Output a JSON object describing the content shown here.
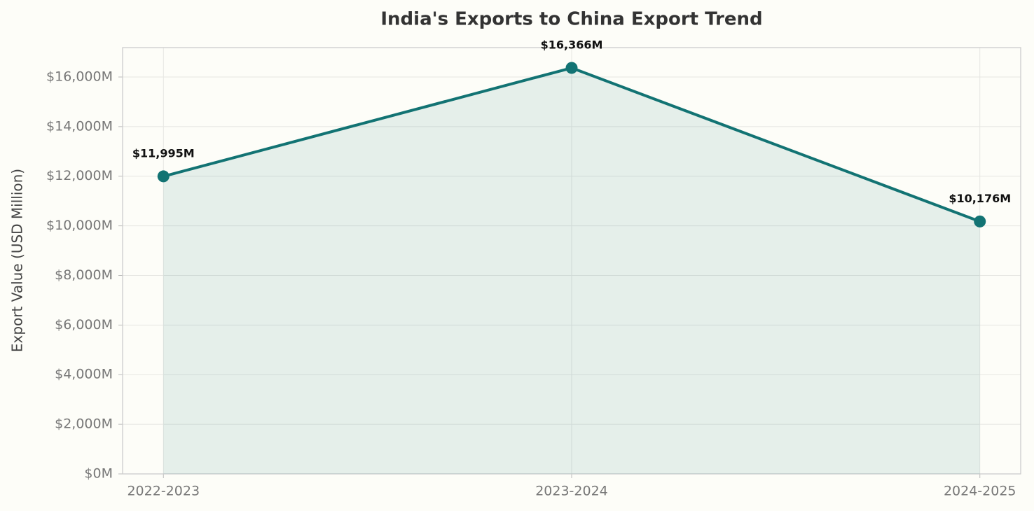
{
  "chart_data": {
    "type": "line",
    "title": "India's Exports to China Export Trend",
    "y_label": "Export Value (USD Million)",
    "categories": [
      "2022-2023",
      "2023-2024",
      "2024-2025"
    ],
    "values": [
      11995,
      16366,
      10176
    ],
    "value_labels": [
      "$11,995M",
      "$16,366M",
      "$10,176M"
    ],
    "color": "#127373",
    "area": true,
    "ylim": [
      0,
      17185
    ],
    "yticks": [
      {
        "value": 0,
        "label": "$0M"
      },
      {
        "value": 2000,
        "label": "$2,000M"
      },
      {
        "value": 4000,
        "label": "$4,000M"
      },
      {
        "value": 6000,
        "label": "$6,000M"
      },
      {
        "value": 8000,
        "label": "$8,000M"
      },
      {
        "value": 10000,
        "label": "$10,000M"
      },
      {
        "value": 12000,
        "label": "$12,000M"
      },
      {
        "value": 14000,
        "label": "$14,000M"
      },
      {
        "value": 16000,
        "label": "$16,000M"
      }
    ],
    "grid": true
  }
}
